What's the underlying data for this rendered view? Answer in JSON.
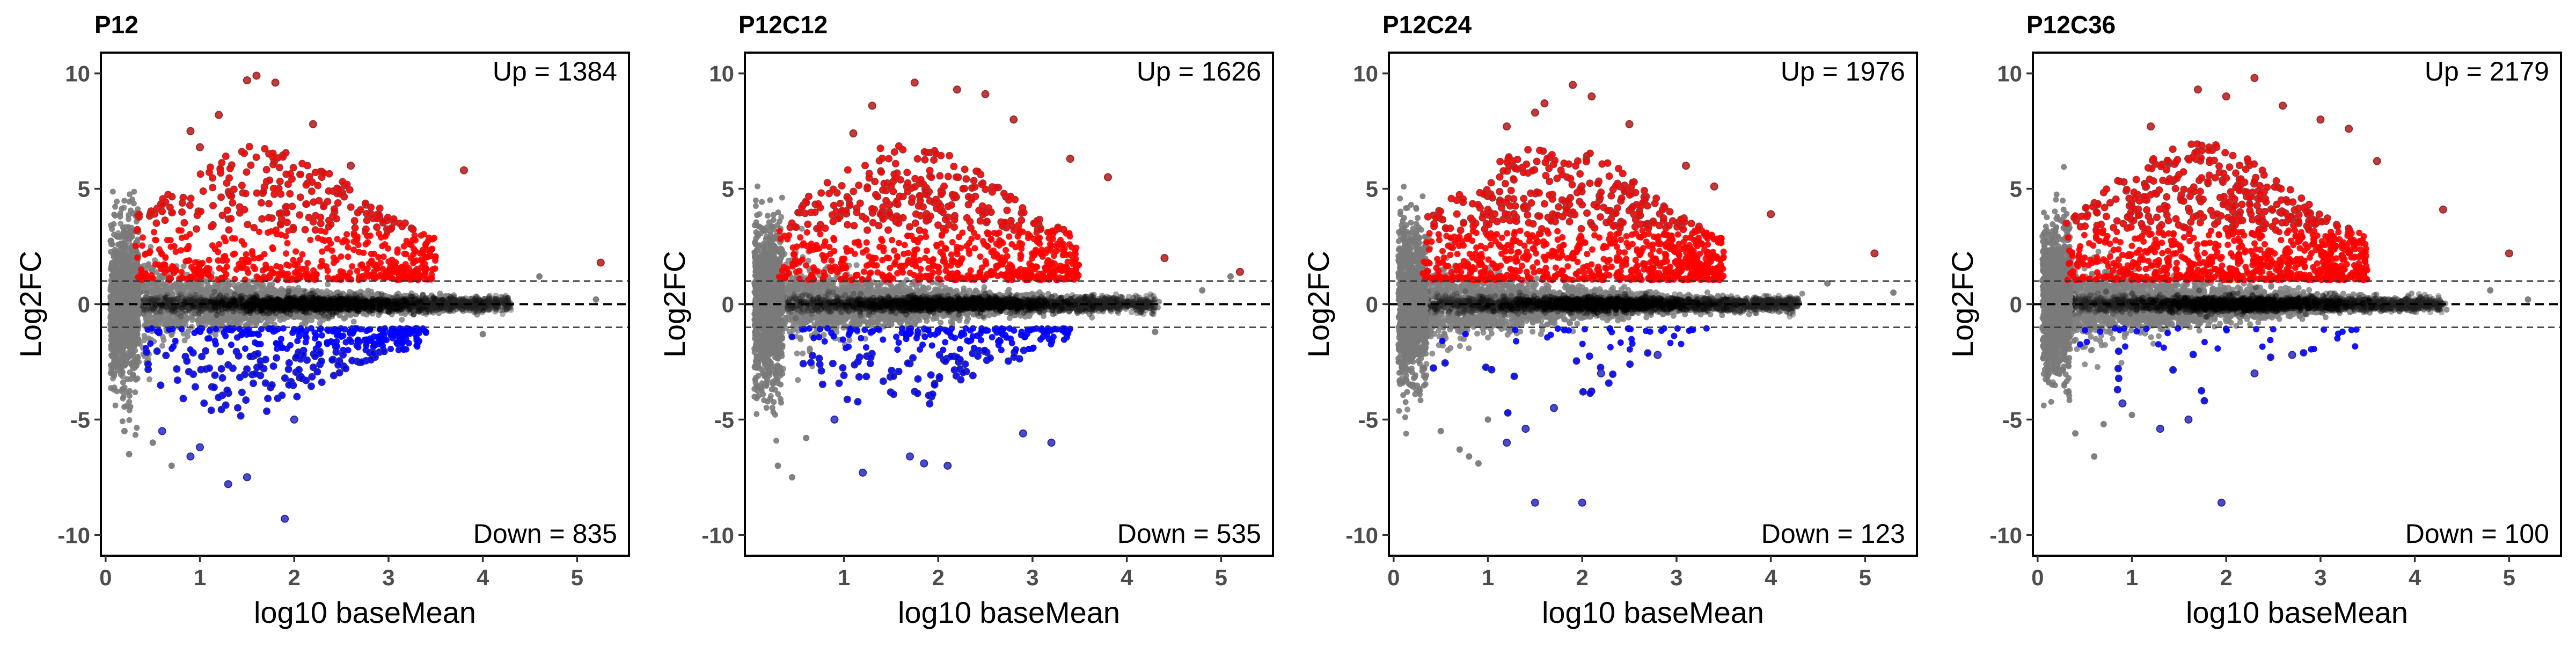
{
  "chart_data": [
    {
      "type": "scatter",
      "title": "P12",
      "xlabel": "log10 baseMean",
      "ylabel": "Log2FC",
      "xlim": [
        -0.05,
        5.55
      ],
      "ylim": [
        -10.9,
        10.9
      ],
      "xticks": [
        0,
        1,
        2,
        3,
        4,
        5
      ],
      "yticks": [
        10,
        5,
        0,
        -5,
        -10
      ],
      "hlines": {
        "zero": 0,
        "thresholds": [
          1,
          -1
        ]
      },
      "annotations": {
        "up": "Up = 1384",
        "down": "Down = 835"
      },
      "series": [
        {
          "category": "up",
          "color": "#ff0000",
          "count": 1384
        },
        {
          "category": "down",
          "color": "#0000ff",
          "count": 835
        },
        {
          "category": "not-significant",
          "color": "#808080"
        }
      ],
      "sample_points": {
        "up": [
          [
            1.6,
            9.9
          ],
          [
            1.8,
            9.6
          ],
          [
            1.5,
            9.7
          ],
          [
            1.2,
            8.2
          ],
          [
            0.9,
            7.5
          ],
          [
            2.2,
            7.8
          ],
          [
            2.6,
            6.0
          ],
          [
            3.8,
            5.8
          ],
          [
            5.25,
            1.8
          ],
          [
            1.0,
            6.8
          ]
        ],
        "down": [
          [
            1.9,
            -9.3
          ],
          [
            1.3,
            -7.8
          ],
          [
            1.5,
            -7.5
          ],
          [
            0.9,
            -6.6
          ],
          [
            1.0,
            -6.2
          ],
          [
            0.6,
            -5.5
          ],
          [
            2.0,
            -5.0
          ]
        ],
        "ns_outliers": [
          [
            0.2,
            -5.5
          ],
          [
            0.25,
            -6.5
          ],
          [
            0.5,
            -6.0
          ],
          [
            0.7,
            -7.0
          ],
          [
            4.6,
            1.2
          ],
          [
            5.2,
            0.2
          ],
          [
            4.0,
            -1.3
          ]
        ]
      }
    },
    {
      "type": "scatter",
      "title": "P12C12",
      "xlabel": "log10 baseMean",
      "ylabel": "Log2FC",
      "xlim": [
        -0.05,
        5.55
      ],
      "ylim": [
        -10.9,
        10.9
      ],
      "xticks": [
        1,
        2,
        3,
        4,
        5
      ],
      "yticks": [
        10,
        5,
        0,
        -5,
        -10
      ],
      "hlines": {
        "zero": 0,
        "thresholds": [
          1,
          -1
        ]
      },
      "annotations": {
        "up": "Up = 1626",
        "down": "Down = 535"
      },
      "series": [
        {
          "category": "up",
          "color": "#ff0000",
          "count": 1626
        },
        {
          "category": "down",
          "color": "#0000ff",
          "count": 535
        },
        {
          "category": "not-significant",
          "color": "#808080"
        }
      ],
      "sample_points": {
        "up": [
          [
            1.75,
            9.6
          ],
          [
            2.2,
            9.3
          ],
          [
            2.5,
            9.1
          ],
          [
            1.3,
            8.6
          ],
          [
            2.8,
            8.0
          ],
          [
            3.4,
            6.3
          ],
          [
            3.8,
            5.5
          ],
          [
            4.4,
            2.0
          ],
          [
            5.2,
            1.4
          ],
          [
            1.1,
            7.4
          ]
        ],
        "down": [
          [
            1.2,
            -7.3
          ],
          [
            1.7,
            -6.6
          ],
          [
            1.85,
            -6.9
          ],
          [
            2.1,
            -7.0
          ],
          [
            2.9,
            -5.6
          ],
          [
            3.2,
            -6.0
          ],
          [
            0.9,
            -5.0
          ]
        ],
        "ns_outliers": [
          [
            0.3,
            -7.0
          ],
          [
            0.45,
            -7.5
          ],
          [
            0.6,
            -5.8
          ],
          [
            5.1,
            1.2
          ],
          [
            4.8,
            0.6
          ],
          [
            4.3,
            -1.2
          ]
        ]
      }
    },
    {
      "type": "scatter",
      "title": "P12C24",
      "xlabel": "log10 baseMean",
      "ylabel": "Log2FC",
      "xlim": [
        -0.05,
        5.55
      ],
      "ylim": [
        -10.9,
        10.9
      ],
      "xticks": [
        0,
        1,
        2,
        3,
        4,
        5
      ],
      "yticks": [
        10,
        5,
        0,
        -5,
        -10
      ],
      "hlines": {
        "zero": 0,
        "thresholds": [
          1,
          -1
        ]
      },
      "annotations": {
        "up": "Up = 1976",
        "down": "Down = 123"
      },
      "series": [
        {
          "category": "up",
          "color": "#ff0000",
          "count": 1976
        },
        {
          "category": "down",
          "color": "#0000ff",
          "count": 123
        },
        {
          "category": "not-significant",
          "color": "#808080"
        }
      ],
      "sample_points": {
        "up": [
          [
            1.9,
            9.5
          ],
          [
            2.1,
            9.0
          ],
          [
            1.6,
            8.7
          ],
          [
            1.2,
            7.7
          ],
          [
            2.5,
            7.8
          ],
          [
            3.1,
            6.0
          ],
          [
            3.4,
            5.1
          ],
          [
            4.0,
            3.9
          ],
          [
            5.1,
            2.2
          ],
          [
            1.5,
            8.3
          ]
        ],
        "down": [
          [
            1.5,
            -8.6
          ],
          [
            2.0,
            -8.6
          ],
          [
            1.2,
            -6.0
          ],
          [
            1.4,
            -5.4
          ],
          [
            1.7,
            -4.5
          ],
          [
            2.2,
            -3.0
          ],
          [
            2.8,
            -2.2
          ]
        ],
        "ns_outliers": [
          [
            0.5,
            -5.5
          ],
          [
            0.7,
            -6.3
          ],
          [
            0.9,
            -6.9
          ],
          [
            0.8,
            -6.6
          ],
          [
            1.0,
            -5.0
          ],
          [
            4.6,
            0.9
          ],
          [
            5.3,
            0.5
          ]
        ]
      }
    },
    {
      "type": "scatter",
      "title": "P12C36",
      "xlabel": "log10 baseMean",
      "ylabel": "Log2FC",
      "xlim": [
        -0.05,
        5.55
      ],
      "ylim": [
        -10.9,
        10.9
      ],
      "xticks": [
        0,
        1,
        2,
        3,
        4,
        5
      ],
      "yticks": [
        10,
        5,
        0,
        -5,
        -10
      ],
      "hlines": {
        "zero": 0,
        "thresholds": [
          1,
          -1
        ]
      },
      "annotations": {
        "up": "Up = 2179",
        "down": "Down = 100"
      },
      "series": [
        {
          "category": "up",
          "color": "#ff0000",
          "count": 2179
        },
        {
          "category": "down",
          "color": "#0000ff",
          "count": 100
        },
        {
          "category": "not-significant",
          "color": "#808080"
        }
      ],
      "sample_points": {
        "up": [
          [
            2.3,
            9.8
          ],
          [
            1.7,
            9.3
          ],
          [
            2.6,
            8.6
          ],
          [
            3.0,
            8.0
          ],
          [
            3.3,
            7.6
          ],
          [
            1.2,
            7.7
          ],
          [
            3.6,
            6.2
          ],
          [
            4.3,
            4.1
          ],
          [
            5.0,
            2.2
          ],
          [
            2.0,
            9.0
          ]
        ],
        "down": [
          [
            1.95,
            -8.6
          ],
          [
            1.3,
            -5.4
          ],
          [
            1.6,
            -5.0
          ],
          [
            0.9,
            -4.3
          ],
          [
            2.3,
            -3.0
          ],
          [
            2.7,
            -2.2
          ]
        ],
        "ns_outliers": [
          [
            0.4,
            -5.6
          ],
          [
            0.6,
            -6.6
          ],
          [
            0.7,
            -5.2
          ],
          [
            1.0,
            -4.8
          ],
          [
            4.8,
            0.6
          ],
          [
            5.2,
            0.2
          ]
        ]
      }
    }
  ]
}
